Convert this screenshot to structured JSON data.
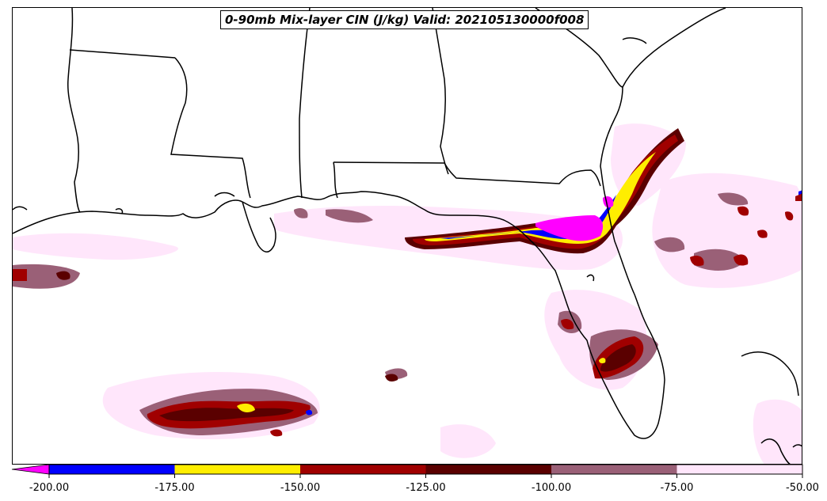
{
  "title": "0-90mb Mix-layer CIN (J/kg) Valid: 202105130000f008",
  "colorbar": {
    "levels": [
      -200,
      -175,
      -150,
      -125,
      -100,
      -75,
      -50
    ],
    "tick_labels": [
      "-200.00",
      "-175.00",
      "-150.00",
      "-125.00",
      "-100.00",
      "-75.00",
      "-50.00"
    ],
    "colors": [
      "#0000ff",
      "#ffee00",
      "#a00000",
      "#5a0000",
      "#9a6077",
      "#ffe6fb"
    ],
    "under_color": "#ff00ff"
  },
  "legend_colors": {
    "very_strong": "#ff00ff",
    "strong": "#0000ff",
    "moderate_strong": "#ffee00",
    "moderate": "#a00000",
    "weak_moderate": "#5a0000",
    "weak": "#9a6077",
    "very_weak": "#ffe6fb"
  }
}
